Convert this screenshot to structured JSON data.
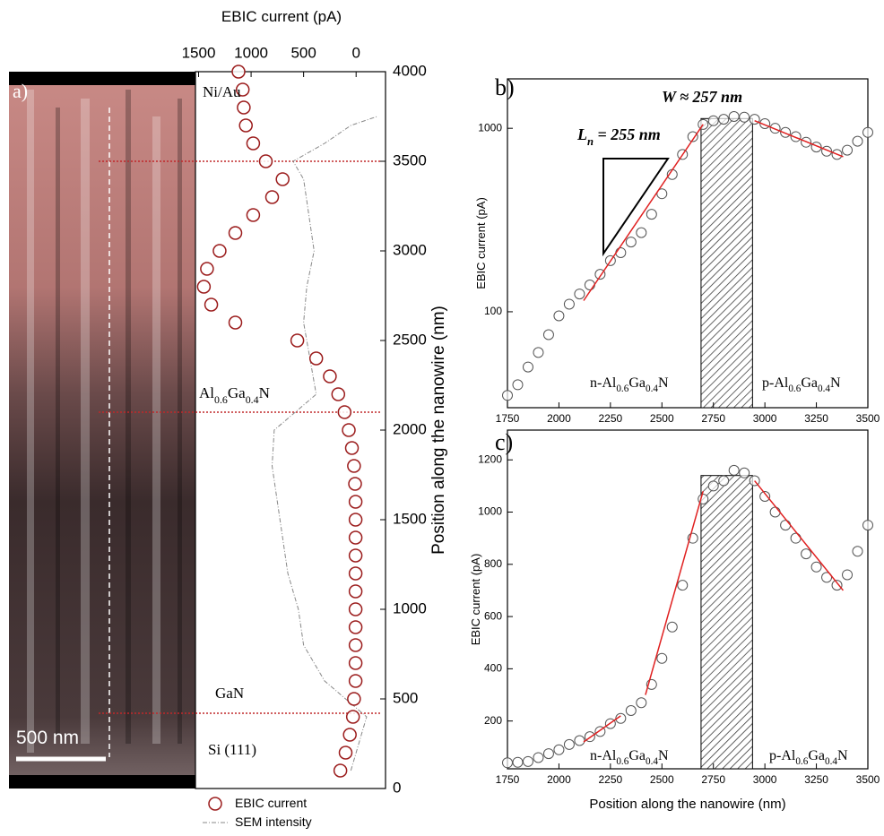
{
  "chart_data": [
    {
      "type": "scatter",
      "orientation": "horizontal",
      "title": "EBIC current (pA)",
      "y_label": "Position along the nanowire (nm)",
      "xlim": [
        1530,
        -280
      ],
      "xticks": [
        1500,
        1000,
        500,
        0
      ],
      "ylim": [
        0,
        4000
      ],
      "yticks": [
        0,
        500,
        1000,
        1500,
        2000,
        2500,
        3000,
        3500,
        4000
      ],
      "series": [
        {
          "name": "EBIC current",
          "color": "#9b1c1c",
          "positions": [
            100,
            200,
            300,
            400,
            500,
            600,
            700,
            800,
            900,
            1000,
            1100,
            1200,
            1300,
            1400,
            1500,
            1600,
            1700,
            1800,
            1900,
            2000,
            2100,
            2200,
            2300,
            2400,
            2500,
            2600,
            2700,
            2800,
            2900,
            3000,
            3100,
            3200,
            3300,
            3400,
            3500,
            3600,
            3700,
            3800,
            3900,
            4000
          ],
          "values": [
            150,
            100,
            60,
            30,
            20,
            5,
            5,
            5,
            5,
            5,
            5,
            5,
            5,
            5,
            5,
            5,
            10,
            20,
            40,
            70,
            110,
            170,
            250,
            380,
            560,
            1150,
            1380,
            1450,
            1420,
            1300,
            1150,
            980,
            800,
            700,
            860,
            980,
            1050,
            1070,
            1080,
            1120
          ]
        },
        {
          "name": "SEM intensity",
          "color": "#888888",
          "positions": [
            100,
            200,
            300,
            400,
            500,
            600,
            800,
            1000,
            1200,
            1400,
            1600,
            1800,
            2000,
            2200,
            2400,
            2600,
            2800,
            3000,
            3200,
            3400,
            3500,
            3600,
            3700,
            3750
          ],
          "values": [
            50,
            0,
            -50,
            -100,
            100,
            300,
            500,
            550,
            650,
            700,
            750,
            800,
            780,
            380,
            440,
            500,
            470,
            400,
            450,
            500,
            600,
            300,
            50,
            -200
          ]
        }
      ],
      "boundaries": [
        3500,
        2100,
        420
      ],
      "annotations": [
        "a)",
        "Ni/Au",
        "Al0.6Ga0.4N",
        "GaN",
        "Si (111)"
      ],
      "scale_bar": "500 nm"
    },
    {
      "type": "scatter",
      "log_y": true,
      "panel": "b)",
      "y_label": "EBIC current (pA)",
      "xlim": [
        1750,
        3500
      ],
      "xticks": [
        1750,
        2000,
        2250,
        2500,
        2750,
        3000,
        3250,
        3500
      ],
      "ylim": [
        30,
        1860
      ],
      "yticks": [
        100,
        1000
      ],
      "x": [
        1750,
        1800,
        1850,
        1900,
        1950,
        2000,
        2050,
        2100,
        2150,
        2200,
        2250,
        2300,
        2350,
        2400,
        2450,
        2500,
        2550,
        2600,
        2650,
        2700,
        2750,
        2800,
        2850,
        2900,
        2950,
        3000,
        3050,
        3100,
        3150,
        3200,
        3250,
        3300,
        3350,
        3400,
        3450,
        3500
      ],
      "values": [
        35,
        40,
        50,
        60,
        75,
        95,
        110,
        125,
        140,
        160,
        190,
        210,
        240,
        270,
        340,
        440,
        560,
        720,
        900,
        1050,
        1100,
        1120,
        1160,
        1150,
        1120,
        1060,
        1000,
        950,
        900,
        840,
        790,
        750,
        720,
        760,
        850,
        950
      ],
      "color": "#555555",
      "fits": [
        {
          "x": [
            2120,
            2700
          ],
          "values": [
            115,
            1050
          ],
          "color": "#e02020"
        },
        {
          "x": [
            2950,
            3380
          ],
          "values": [
            1100,
            700
          ],
          "color": "#e02020"
        }
      ],
      "region": {
        "x": [
          2690,
          2940
        ],
        "top": 1130
      },
      "annotations": [
        "Ln = 255 nm",
        "W ≈ 257 nm",
        "n-Al0.6Ga0.4N",
        "p-Al0.6Ga0.4N"
      ]
    },
    {
      "type": "scatter",
      "panel": "c)",
      "x_label": "Position along the nanowire (nm)",
      "y_label": "EBIC current (pA)",
      "xlim": [
        1750,
        3500
      ],
      "xticks": [
        1750,
        2000,
        2250,
        2500,
        2750,
        3000,
        3250,
        3500
      ],
      "ylim": [
        17,
        1314
      ],
      "yticks": [
        200,
        400,
        600,
        800,
        1000,
        1200
      ],
      "x": [
        1750,
        1800,
        1850,
        1900,
        1950,
        2000,
        2050,
        2100,
        2150,
        2200,
        2250,
        2300,
        2350,
        2400,
        2450,
        2500,
        2550,
        2600,
        2650,
        2700,
        2750,
        2800,
        2850,
        2900,
        2950,
        3000,
        3050,
        3100,
        3150,
        3200,
        3250,
        3300,
        3350,
        3400,
        3450,
        3500
      ],
      "values": [
        40,
        42,
        45,
        60,
        75,
        90,
        110,
        125,
        140,
        160,
        190,
        210,
        240,
        270,
        340,
        440,
        560,
        720,
        900,
        1050,
        1100,
        1120,
        1160,
        1150,
        1120,
        1060,
        1000,
        950,
        900,
        840,
        790,
        750,
        720,
        760,
        850,
        950
      ],
      "color": "#555555",
      "fits": [
        {
          "x": [
            2120,
            2300
          ],
          "values": [
            120,
            220
          ],
          "color": "#e02020"
        },
        {
          "x": [
            2420,
            2700
          ],
          "values": [
            300,
            1080
          ],
          "color": "#e02020"
        },
        {
          "x": [
            2950,
            3380
          ],
          "values": [
            1120,
            700
          ],
          "color": "#e02020"
        }
      ],
      "region": {
        "x": [
          2690,
          2940
        ],
        "top": 1140
      },
      "annotations": [
        "n-Al0.6Ga0.4N",
        "p-Al0.6Ga0.4N"
      ]
    }
  ]
}
